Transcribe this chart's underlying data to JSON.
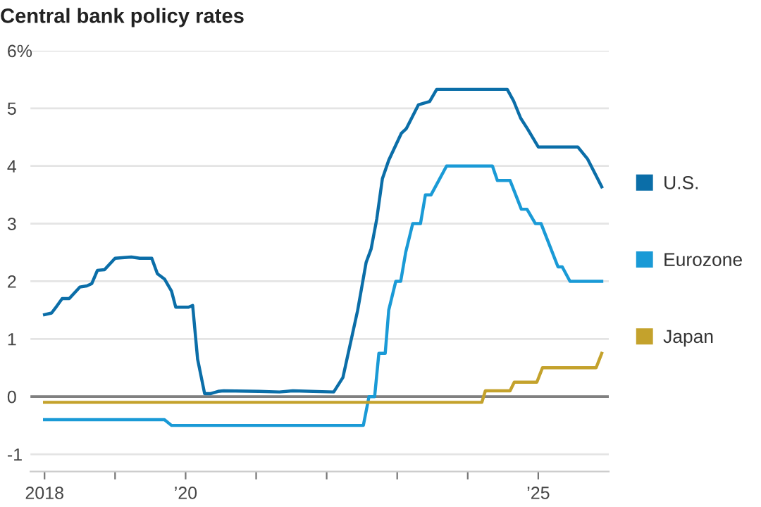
{
  "chart_data": {
    "type": "line",
    "title": "Central bank policy rates",
    "xlim": [
      2017.8,
      2026.0
    ],
    "xticks": [
      {
        "value": 2018,
        "label": "2018"
      },
      {
        "value": 2019,
        "label": null
      },
      {
        "value": 2020,
        "label": "’20"
      },
      {
        "value": 2021,
        "label": null
      },
      {
        "value": 2022,
        "label": null
      },
      {
        "value": 2023,
        "label": null
      },
      {
        "value": 2024,
        "label": null
      },
      {
        "value": 2025,
        "label": "’25"
      }
    ],
    "ylim": [
      -1.3,
      6
    ],
    "legend": "right",
    "yticks": [
      {
        "value": -1,
        "label": "-1"
      },
      0,
      1,
      2,
      3,
      4,
      5,
      {
        "value": 6,
        "label": "6%"
      }
    ],
    "grid": "y",
    "ref_lines": [
      {
        "axis": "y",
        "value": 0,
        "color": "#808080"
      }
    ],
    "series": [
      {
        "name": "U.S.",
        "color": "#0b6ea8",
        "x": [
          2018.0,
          2018.1,
          2018.15,
          2018.25,
          2018.35,
          2018.5,
          2018.6,
          2018.67,
          2018.75,
          2018.85,
          2019.0,
          2019.23,
          2019.35,
          2019.46,
          2019.52,
          2019.6,
          2019.7,
          2019.8,
          2019.86,
          2020.04,
          2020.1,
          2020.17,
          2020.27,
          2020.35,
          2020.46,
          2020.54,
          2021.04,
          2021.33,
          2021.52,
          2022.1,
          2022.23,
          2022.44,
          2022.56,
          2022.63,
          2022.71,
          2022.79,
          2022.88,
          2023.06,
          2023.13,
          2023.3,
          2023.46,
          2023.56,
          2024.56,
          2024.65,
          2024.75,
          2024.85,
          2025.0,
          2025.56,
          2025.7,
          2025.9
        ],
        "values": [
          1.42,
          1.45,
          1.53,
          1.7,
          1.7,
          1.9,
          1.92,
          1.96,
          2.19,
          2.2,
          2.4,
          2.42,
          2.4,
          2.4,
          2.4,
          2.13,
          2.04,
          1.83,
          1.55,
          1.55,
          1.58,
          0.65,
          0.05,
          0.05,
          0.09,
          0.1,
          0.09,
          0.08,
          0.1,
          0.08,
          0.33,
          1.5,
          2.33,
          2.56,
          3.08,
          3.78,
          4.1,
          4.57,
          4.65,
          5.06,
          5.12,
          5.33,
          5.33,
          5.13,
          4.83,
          4.64,
          4.33,
          4.33,
          4.12,
          3.64
        ]
      },
      {
        "name": "Eurozone",
        "color": "#1a9ad6",
        "x": [
          2018.0,
          2019.7,
          2019.8,
          2022.52,
          2022.6,
          2022.68,
          2022.74,
          2022.83,
          2022.88,
          2022.98,
          2023.05,
          2023.12,
          2023.22,
          2023.33,
          2023.4,
          2023.48,
          2023.7,
          2024.35,
          2024.42,
          2024.6,
          2024.68,
          2024.76,
          2024.84,
          2024.96,
          2025.04,
          2025.28,
          2025.34,
          2025.45,
          2025.9
        ],
        "values": [
          -0.4,
          -0.4,
          -0.5,
          -0.5,
          0.0,
          0.0,
          0.75,
          0.75,
          1.5,
          2.0,
          2.0,
          2.5,
          3.0,
          3.0,
          3.5,
          3.5,
          4.0,
          4.0,
          3.75,
          3.75,
          3.5,
          3.25,
          3.25,
          3.0,
          3.0,
          2.25,
          2.25,
          2.0,
          2.0
        ]
      },
      {
        "name": "Japan",
        "color": "#c4a22c",
        "x": [
          2018.0,
          2024.2,
          2024.25,
          2024.6,
          2024.66,
          2024.98,
          2025.06,
          2025.82,
          2025.9
        ],
        "values": [
          -0.1,
          -0.1,
          0.1,
          0.1,
          0.25,
          0.25,
          0.5,
          0.5,
          0.75
        ]
      }
    ]
  }
}
